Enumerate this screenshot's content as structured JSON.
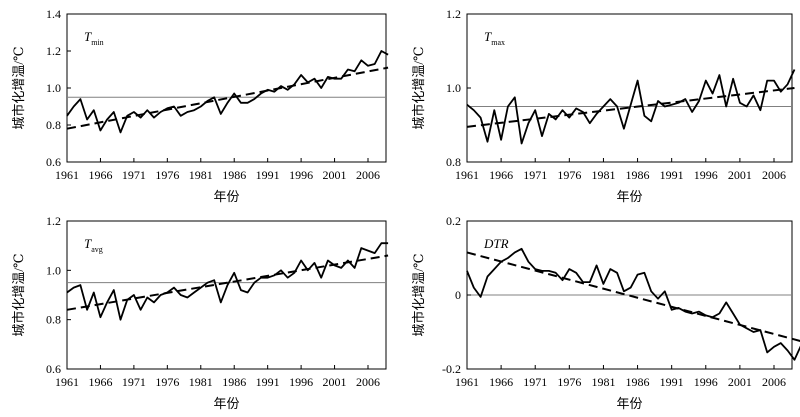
{
  "chart_data": [
    {
      "type": "line",
      "panel_label": "T",
      "panel_label_sub": "min",
      "xlabel": "年份",
      "ylabel": "城市化增温/℃",
      "ylim": [
        0.6,
        1.4
      ],
      "yticks": [
        "0.6",
        "0.8",
        "1.0",
        "1.2",
        "1.4"
      ],
      "xticks": [
        "1961",
        "1966",
        "1971",
        "1976",
        "1981",
        "1986",
        "1991",
        "1996",
        "2001",
        "2006"
      ],
      "x_start": 1961,
      "reference_level": 0.95,
      "trend": [
        0.78,
        1.11
      ],
      "values": [
        0.85,
        0.9,
        0.94,
        0.83,
        0.88,
        0.77,
        0.83,
        0.87,
        0.76,
        0.85,
        0.87,
        0.84,
        0.88,
        0.84,
        0.87,
        0.89,
        0.9,
        0.85,
        0.87,
        0.88,
        0.9,
        0.93,
        0.95,
        0.86,
        0.92,
        0.97,
        0.92,
        0.92,
        0.94,
        0.97,
        0.99,
        0.98,
        1.01,
        0.99,
        1.02,
        1.07,
        1.03,
        1.05,
        1.0,
        1.06,
        1.05,
        1.05,
        1.1,
        1.09,
        1.15,
        1.12,
        1.13,
        1.2,
        1.18
      ]
    },
    {
      "type": "line",
      "panel_label": "T",
      "panel_label_sub": "max",
      "xlabel": "年份",
      "ylabel": "城市化增温/℃",
      "ylim": [
        0.8,
        1.2
      ],
      "yticks": [
        "0.8",
        "1.0",
        "1.2"
      ],
      "xticks": [
        "1961",
        "1966",
        "1971",
        "1976",
        "1981",
        "1986",
        "1991",
        "1996",
        "2001",
        "2006"
      ],
      "x_start": 1961,
      "reference_level": 0.95,
      "trend": [
        0.895,
        1.0
      ],
      "values": [
        0.955,
        0.94,
        0.92,
        0.855,
        0.94,
        0.86,
        0.95,
        0.975,
        0.85,
        0.905,
        0.94,
        0.87,
        0.93,
        0.915,
        0.94,
        0.92,
        0.945,
        0.935,
        0.905,
        0.93,
        0.95,
        0.97,
        0.95,
        0.89,
        0.955,
        1.02,
        0.925,
        0.91,
        0.965,
        0.95,
        0.955,
        0.96,
        0.97,
        0.935,
        0.965,
        1.02,
        0.985,
        1.035,
        0.95,
        1.025,
        0.96,
        0.95,
        0.98,
        0.94,
        1.02,
        1.02,
        0.99,
        1.01,
        1.05
      ]
    },
    {
      "type": "line",
      "panel_label": "T",
      "panel_label_sub": "avg",
      "xlabel": "年份",
      "ylabel": "城市化增温/℃",
      "ylim": [
        0.6,
        1.2
      ],
      "yticks": [
        "0.6",
        "0.8",
        "1.0",
        "1.2"
      ],
      "xticks": [
        "1961",
        "1966",
        "1971",
        "1976",
        "1981",
        "1986",
        "1991",
        "1996",
        "2001",
        "2006"
      ],
      "x_start": 1961,
      "reference_level": 0.95,
      "trend": [
        0.84,
        1.06
      ],
      "values": [
        0.91,
        0.93,
        0.94,
        0.84,
        0.91,
        0.81,
        0.87,
        0.92,
        0.8,
        0.88,
        0.9,
        0.84,
        0.89,
        0.87,
        0.9,
        0.91,
        0.93,
        0.9,
        0.89,
        0.91,
        0.93,
        0.95,
        0.96,
        0.87,
        0.94,
        0.99,
        0.92,
        0.91,
        0.95,
        0.97,
        0.97,
        0.98,
        1.0,
        0.97,
        0.99,
        1.04,
        1.0,
        1.03,
        0.97,
        1.04,
        1.02,
        1.01,
        1.04,
        1.01,
        1.09,
        1.08,
        1.07,
        1.11,
        1.11
      ]
    },
    {
      "type": "line",
      "panel_label": "DTR",
      "panel_label_sub": "",
      "xlabel": "年份",
      "ylabel": "城市化增温/℃",
      "ylim": [
        -0.2,
        0.2
      ],
      "yticks": [
        "-0.2",
        "0",
        "0.2"
      ],
      "xticks": [
        "1961",
        "1966",
        "1971",
        "1976",
        "1981",
        "1986",
        "1991",
        "1996",
        "2001",
        "2006"
      ],
      "x_start": 1961,
      "reference_level": 0,
      "trend": [
        0.115,
        -0.125
      ],
      "values": [
        0.065,
        0.02,
        -0.005,
        0.05,
        0.07,
        0.09,
        0.1,
        0.115,
        0.125,
        0.09,
        0.07,
        0.065,
        0.065,
        0.06,
        0.04,
        0.07,
        0.06,
        0.035,
        0.035,
        0.08,
        0.03,
        0.07,
        0.06,
        0.01,
        0.02,
        0.055,
        0.06,
        0.01,
        -0.01,
        0.01,
        -0.04,
        -0.035,
        -0.045,
        -0.05,
        -0.045,
        -0.055,
        -0.06,
        -0.05,
        -0.02,
        -0.05,
        -0.08,
        -0.09,
        -0.1,
        -0.095,
        -0.155,
        -0.14,
        -0.13,
        -0.15,
        -0.175,
        -0.135
      ]
    }
  ]
}
